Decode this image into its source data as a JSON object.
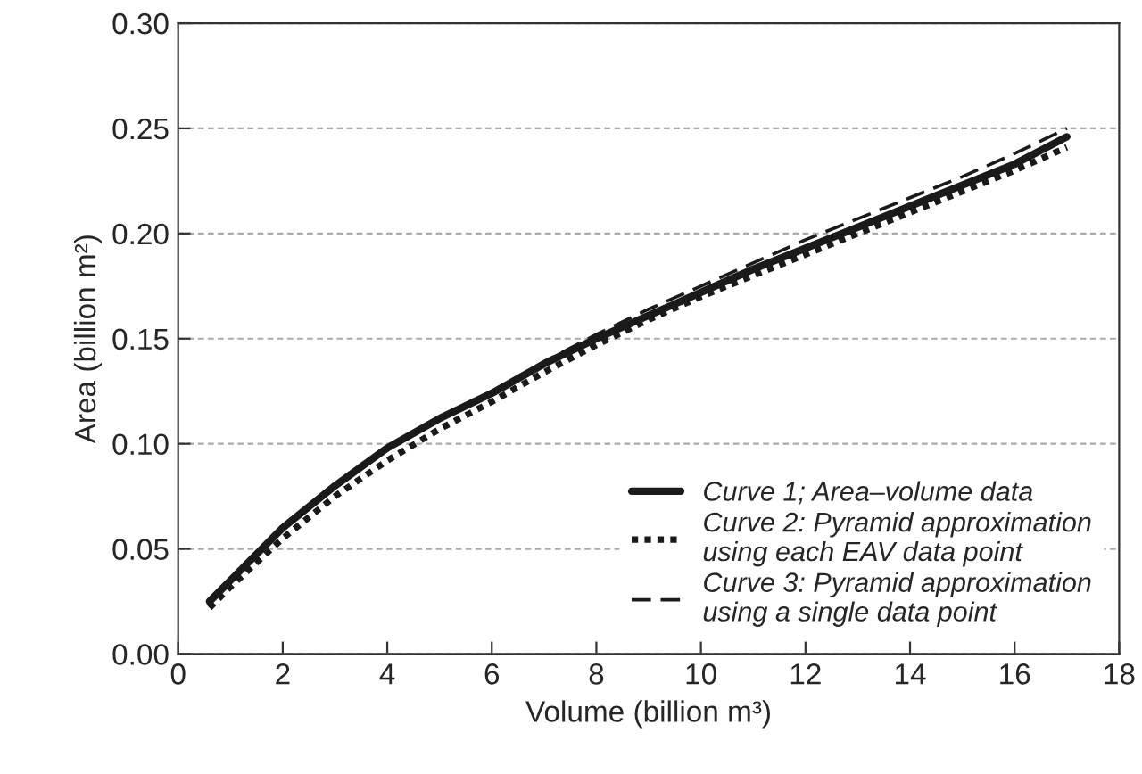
{
  "chart_data": {
    "type": "line",
    "xlabel": "Volume (billion m³)",
    "ylabel": "Area (billion m²)",
    "xlim": [
      0,
      18
    ],
    "xticks": [
      0,
      2,
      4,
      6,
      8,
      10,
      12,
      14,
      16,
      18
    ],
    "ylim": [
      0,
      0.3
    ],
    "yticks": [
      {
        "value": 0,
        "label": "0.00"
      },
      {
        "value": 0.05,
        "label": "0.05"
      },
      {
        "value": 0.1,
        "label": "0.10"
      },
      {
        "value": 0.15,
        "label": "0.15"
      },
      {
        "value": 0.2,
        "label": "0.20"
      },
      {
        "value": 0.25,
        "label": "0.25"
      },
      {
        "value": 0.3,
        "label": "0.30"
      }
    ],
    "grid": "y",
    "legend": "bottom right",
    "marker": "none",
    "series": [
      {
        "name": "Curve 1; Area–volume data",
        "color": "#1a1a1a",
        "line_style": "solid",
        "x": [
          0.6,
          1,
          2,
          3,
          4,
          5,
          6,
          7,
          8,
          9,
          10,
          11,
          12,
          13,
          14,
          15,
          16,
          17
        ],
        "values": [
          0.025,
          0.035,
          0.06,
          0.08,
          0.098,
          0.112,
          0.124,
          0.138,
          0.15,
          0.161,
          0.172,
          0.183,
          0.193,
          0.203,
          0.213,
          0.223,
          0.233,
          0.246
        ]
      },
      {
        "name": "Curve 2: Pyramid approximation\nusing each EAV data point",
        "color": "#1a1a1a",
        "line_style": "dotted",
        "x": [
          0.6,
          1,
          2,
          3,
          4,
          5,
          6,
          7,
          8,
          9,
          10,
          11,
          12,
          13,
          14,
          15,
          16,
          17
        ],
        "values": [
          0.022,
          0.032,
          0.055,
          0.075,
          0.092,
          0.107,
          0.12,
          0.134,
          0.147,
          0.159,
          0.17,
          0.18,
          0.19,
          0.2,
          0.21,
          0.22,
          0.23,
          0.241
        ]
      },
      {
        "name": "Curve 3: Pyramid approximation\nusing a single data point",
        "color": "#1a1a1a",
        "line_style": "dashed",
        "x": [
          0.6,
          1,
          2,
          3,
          4,
          5,
          6,
          7,
          8,
          9,
          10,
          11,
          12,
          13,
          14,
          15,
          16,
          17
        ],
        "values": [
          0.025,
          0.035,
          0.06,
          0.08,
          0.098,
          0.112,
          0.125,
          0.139,
          0.152,
          0.164,
          0.175,
          0.186,
          0.197,
          0.207,
          0.217,
          0.227,
          0.238,
          0.25
        ]
      }
    ]
  }
}
